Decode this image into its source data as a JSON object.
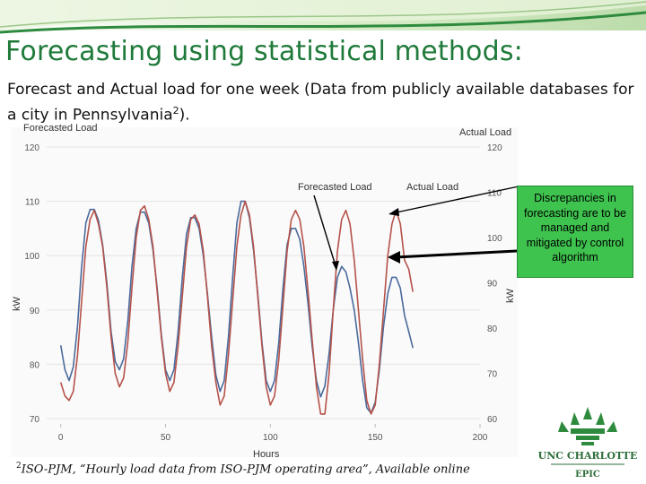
{
  "slide": {
    "title": "Forecasting using statistical methods:",
    "subtitle_text": "Forecast and Actual load for one week (Data from publicly available databases for a city in Pennsylvania",
    "subtitle_sup": "2",
    "subtitle_end": ").",
    "footnote_sup": "2",
    "footnote_text": "ISO-PJM, “Hourly load data from ISO-PJM operating area”, Available online",
    "callout_text": "Discrepancies in forecasting are to be managed and mitigated by control algorithm",
    "logo_text": "UNC CHARLOTTE",
    "logo_sub": "EPIC",
    "colors": {
      "title": "#1f7a3a",
      "callout_bg": "#3fc34f",
      "logo_green": "#2e8b3e"
    }
  },
  "chart_data": {
    "type": "line",
    "left_axis_title": "Forecasted Load",
    "right_axis_title": "Actual Load",
    "xlabel": "Hours",
    "ylabel_left": "kW",
    "ylabel_right": "kW",
    "xlim": [
      -5,
      200
    ],
    "ylim_left": [
      70,
      120
    ],
    "ylim_right": [
      60,
      120
    ],
    "x_ticks": [
      "0",
      "50",
      "100",
      "150",
      "200"
    ],
    "y_ticks_left": [
      "70",
      "80",
      "90",
      "100",
      "110",
      "120"
    ],
    "y_ticks_right": [
      "60",
      "70",
      "80",
      "90",
      "100",
      "110",
      "120"
    ],
    "annotations": [
      "Forecasted Load",
      "Actual Load"
    ],
    "x": [
      0,
      2,
      4,
      6,
      8,
      10,
      12,
      14,
      16,
      18,
      20,
      22,
      24,
      26,
      28,
      30,
      32,
      34,
      36,
      38,
      40,
      42,
      44,
      46,
      48,
      50,
      52,
      54,
      56,
      58,
      60,
      62,
      64,
      66,
      68,
      70,
      72,
      74,
      76,
      78,
      80,
      82,
      84,
      86,
      88,
      90,
      92,
      94,
      96,
      98,
      100,
      102,
      104,
      106,
      108,
      110,
      112,
      114,
      116,
      118,
      120,
      122,
      124,
      126,
      128,
      130,
      132,
      134,
      136,
      138,
      140,
      142,
      144,
      146,
      148,
      150,
      152,
      154,
      156,
      158,
      160,
      162,
      164,
      166,
      168
    ],
    "series": [
      {
        "name": "Forecasted Load",
        "color": "#4a6a9c",
        "axis": "left",
        "values": [
          83.5,
          79,
          77,
          79.5,
          87,
          98,
          106,
          108.5,
          108.5,
          106.5,
          102,
          95,
          86,
          80.5,
          79,
          81,
          88,
          98,
          105,
          108,
          108,
          106,
          101,
          94,
          85.5,
          79,
          77,
          79,
          86,
          96,
          104,
          107,
          107,
          105,
          100,
          93,
          85,
          78,
          75,
          77,
          85,
          96,
          106,
          110,
          110,
          107,
          101,
          93,
          84,
          77,
          75,
          77,
          84,
          94,
          102,
          105,
          105,
          103,
          98,
          91,
          83,
          77,
          74,
          76,
          82,
          90,
          96,
          98,
          97,
          94,
          90,
          84,
          77,
          72,
          71,
          73,
          79,
          87,
          93,
          96,
          96,
          94,
          89,
          86,
          83
        ]
      },
      {
        "name": "Actual Load",
        "color": "#b5524a",
        "axis": "right",
        "values": [
          68,
          65,
          64,
          66,
          74,
          86,
          98,
          104,
          106,
          103,
          98,
          89,
          78,
          70,
          67,
          69,
          77,
          89,
          100,
          106,
          107,
          104,
          98,
          88,
          78,
          70,
          66,
          68,
          76,
          87,
          98,
          104,
          105,
          103,
          97,
          87,
          76,
          68,
          63,
          65,
          74,
          86,
          98,
          105,
          108,
          105,
          98,
          87,
          76,
          67,
          63,
          65,
          73,
          85,
          97,
          104,
          106,
          104,
          98,
          88,
          77,
          67,
          61,
          61,
          70,
          84,
          97,
          104,
          106,
          103,
          95,
          84,
          73,
          64,
          61,
          63,
          72,
          84,
          96,
          103,
          106,
          103,
          95,
          93,
          88
        ]
      }
    ]
  }
}
